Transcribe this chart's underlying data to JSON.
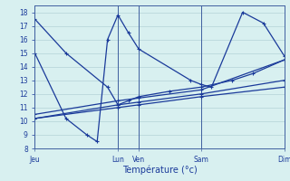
{
  "xlabel": "Température (°c)",
  "background_color": "#d8f0f0",
  "grid_color": "#aaccd0",
  "line_color": "#1a3a9a",
  "spine_color": "#4060a0",
  "ylim": [
    8,
    18.5
  ],
  "yticks": [
    8,
    9,
    10,
    11,
    12,
    13,
    14,
    15,
    16,
    17,
    18
  ],
  "xlim": [
    0,
    12
  ],
  "day_positions": [
    0,
    4,
    5,
    8,
    12
  ],
  "day_labels": [
    "Jeu",
    "Lun",
    "Ven",
    "Sam",
    "Dim"
  ],
  "s1_x": [
    0,
    1.5,
    3.5,
    4.0,
    4.5,
    5.0,
    6.5,
    8.0,
    9.5,
    10.5,
    12.0
  ],
  "s1_y": [
    17.5,
    15.0,
    12.5,
    11.2,
    11.5,
    11.8,
    12.2,
    12.5,
    13.0,
    13.5,
    14.5
  ],
  "s2_x": [
    0,
    1.5,
    2.5,
    3.0,
    3.5,
    4.0,
    4.5,
    5.0,
    7.5,
    8.0,
    8.5,
    10.0,
    11.0,
    12.0
  ],
  "s2_y": [
    15.0,
    10.2,
    9.0,
    8.5,
    16.0,
    17.8,
    16.5,
    15.3,
    13.0,
    12.7,
    12.5,
    18.0,
    17.2,
    14.8
  ],
  "s3_x": [
    0,
    4.0,
    5.0,
    8.0,
    12.0
  ],
  "s3_y": [
    10.2,
    11.0,
    11.2,
    11.8,
    12.5
  ],
  "s4_x": [
    0,
    4.0,
    5.0,
    8.0,
    12.0
  ],
  "s4_y": [
    10.2,
    11.2,
    11.4,
    12.0,
    13.0
  ],
  "s5_x": [
    0,
    4.0,
    5.0,
    8.0,
    12.0
  ],
  "s5_y": [
    10.5,
    11.5,
    11.7,
    12.3,
    14.5
  ],
  "lw": 0.9,
  "ms": 3,
  "tick_fontsize": 5.5,
  "xlabel_fontsize": 7
}
